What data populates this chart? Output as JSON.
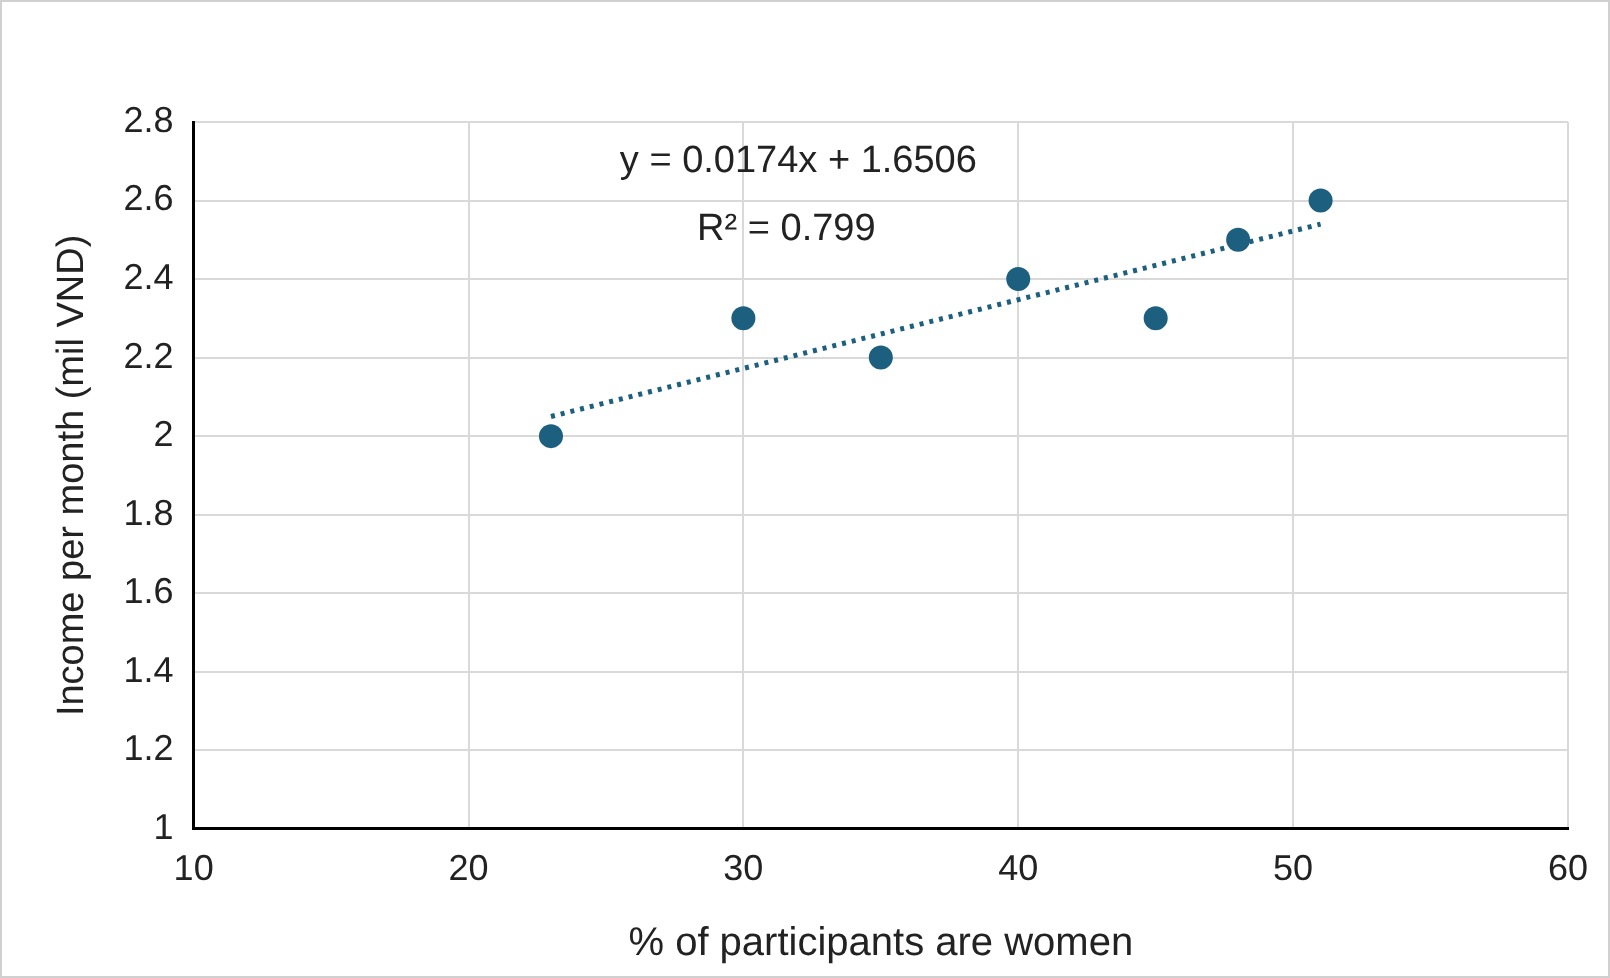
{
  "chart_data": {
    "type": "scatter",
    "xlabel": "% of participants are women",
    "ylabel": "Income per month (mil VND)",
    "xlim": [
      10,
      60
    ],
    "xticks": [
      10,
      20,
      30,
      40,
      50,
      60
    ],
    "ylim": [
      1,
      2.8
    ],
    "yticks": [
      1,
      1.2,
      1.4,
      1.6,
      1.8,
      2,
      2.2,
      2.4,
      2.6,
      2.8
    ],
    "grid": true,
    "legend": false,
    "marker": "circle",
    "annotations": [
      "y = 0.0174x + 1.6506",
      "R² = 0.799"
    ],
    "series": [
      {
        "color": "#1d5f7e",
        "x": [
          23,
          30,
          35,
          40,
          45,
          48,
          51
        ],
        "values": [
          2.0,
          2.3,
          2.2,
          2.4,
          2.3,
          2.5,
          2.6
        ]
      },
      {
        "type": "line",
        "color": "#1d5f7e",
        "line_style": "dotted",
        "marker": "none",
        "x": [
          23,
          51
        ],
        "values": [
          2.05,
          2.54
        ]
      }
    ]
  }
}
